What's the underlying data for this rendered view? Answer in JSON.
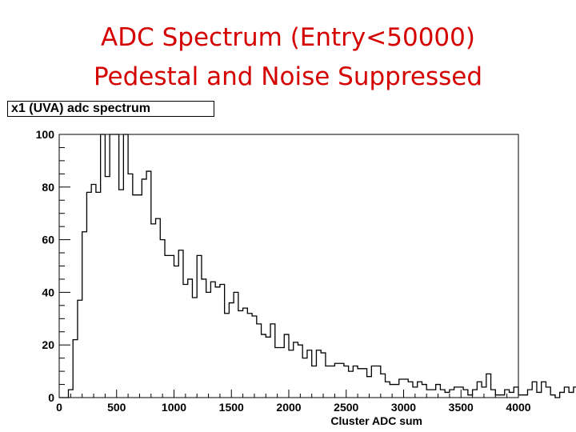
{
  "slide": {
    "title_line1": "ADC Spectrum (Entry<50000)",
    "title_line2": "Pedestal and Noise Suppressed",
    "title_color": "#d50000"
  },
  "chart_data": {
    "type": "bar",
    "subtype": "histogram-step",
    "title": "x1 (UVA) adc spectrum",
    "xlabel": "Cluster ADC sum",
    "ylabel": "",
    "xlim": [
      0,
      4000
    ],
    "ylim": [
      0,
      100
    ],
    "x_ticks": [
      0,
      500,
      1000,
      1500,
      2000,
      2500,
      3000,
      3500,
      4000
    ],
    "y_ticks": [
      0,
      20,
      40,
      60,
      80,
      100
    ],
    "bin_width": 40,
    "bin_start": 0,
    "values": [
      0,
      0,
      3,
      22,
      37,
      63,
      78,
      81,
      78,
      100,
      84,
      100,
      100,
      79,
      100,
      85,
      77,
      77,
      83,
      86,
      66,
      68,
      60,
      54,
      54,
      50,
      56,
      43,
      45,
      38,
      54,
      45,
      40,
      44,
      42,
      43,
      32,
      36,
      40,
      33,
      34,
      32,
      31,
      28,
      24,
      23,
      28,
      19,
      19,
      24,
      18,
      21,
      20,
      15,
      18,
      12,
      18,
      17,
      12,
      12,
      13,
      13,
      12,
      10,
      12,
      11,
      11,
      8,
      12,
      12,
      9,
      6,
      5,
      5,
      7,
      7,
      6,
      4,
      6,
      5,
      3,
      3,
      5,
      3,
      2,
      3,
      4,
      4,
      3,
      1,
      3,
      6,
      4,
      9,
      3,
      1,
      1,
      3,
      2,
      4,
      1,
      1,
      3,
      6,
      2,
      6,
      4,
      1,
      0,
      2,
      4,
      2,
      4,
      2,
      1,
      2,
      2,
      1,
      1,
      2,
      3,
      2,
      1,
      1,
      1,
      2,
      2,
      0,
      1,
      1,
      2,
      1,
      2,
      1,
      1,
      0,
      0,
      1,
      1,
      1
    ],
    "grid": false,
    "legend": "none"
  }
}
